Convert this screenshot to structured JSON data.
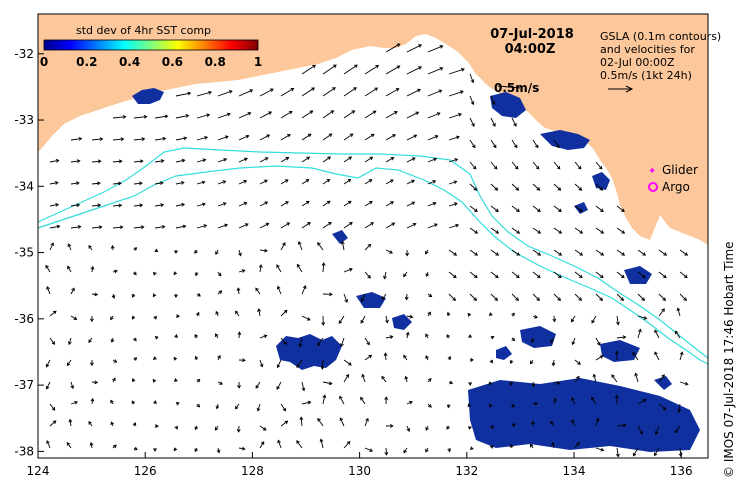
{
  "colorbar": {
    "title": "std dev of 4hr SST comp",
    "ticks": [
      "0",
      "0.2",
      "0.4",
      "0.6",
      "0.8",
      "1"
    ],
    "tick_values": [
      0,
      0.2,
      0.4,
      0.6,
      0.8,
      1
    ]
  },
  "header": {
    "date": "07-Jul-2018",
    "time": "04:00Z"
  },
  "gsla_note": {
    "line1": "GSLA (0.1m contours)",
    "line2": "and velocities for",
    "line3": "02-Jul 00:00Z",
    "line4": "0.5m/s (1kt 24h)"
  },
  "vector_label": "0.5m/s",
  "legend": {
    "glider": "Glider",
    "argo": "Argo",
    "glider_color": "#ff00ff",
    "argo_color": "#ff00ff"
  },
  "axes": {
    "x_ticks": [
      "124",
      "126",
      "128",
      "130",
      "132",
      "134",
      "136"
    ],
    "x_values": [
      124,
      126,
      128,
      130,
      132,
      134,
      136
    ],
    "y_ticks": [
      "-32",
      "-33",
      "-34",
      "-35",
      "-36",
      "-37",
      "-38"
    ],
    "y_values": [
      -32,
      -33,
      -34,
      -35,
      -36,
      -37,
      -38
    ],
    "lon_range": [
      124,
      136.5
    ],
    "lat_range": [
      -38.1,
      -31.4
    ]
  },
  "credit": "© IMOS 07-Jul-2018 17:46 Hobart Time",
  "colors": {
    "land": "#fcc89b",
    "sea": "#ffffff",
    "contour": "#33dddd",
    "sst_patch": "#1030a0",
    "vector": "#000000"
  }
}
